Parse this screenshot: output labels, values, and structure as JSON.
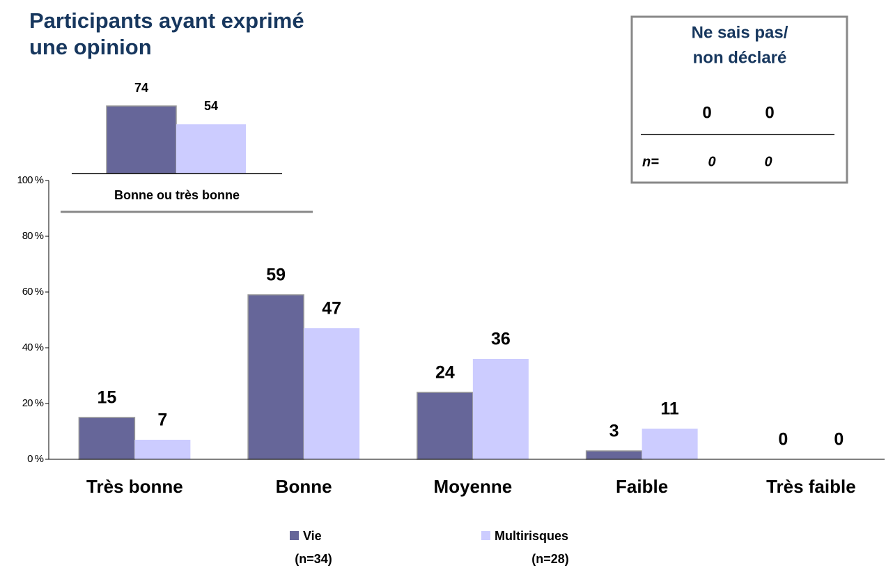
{
  "chart_data": [
    {
      "type": "bar",
      "categories": [
        "Très bonne",
        "Bonne",
        "Moyenne",
        "Faible",
        "Très faible"
      ],
      "series": [
        {
          "name": "Vie",
          "n_label": "(n=34)",
          "color": "#666699",
          "values": [
            15,
            59,
            24,
            3,
            0
          ]
        },
        {
          "name": "Multirisques",
          "n_label": "(n=28)",
          "color": "#ccccff",
          "values": [
            7,
            47,
            36,
            11,
            0
          ]
        }
      ],
      "ylim": [
        0,
        100
      ],
      "yticks": [
        {
          "value": 0,
          "label": "0 %"
        },
        {
          "value": 20,
          "label": "20 %"
        },
        {
          "value": 40,
          "label": "40 %"
        },
        {
          "value": 60,
          "label": "60 %"
        },
        {
          "value": 80,
          "label": "80 %"
        },
        {
          "value": 100,
          "label": "100 %"
        }
      ]
    },
    {
      "type": "bar",
      "categories": [
        "Bonne ou très bonne"
      ],
      "series": [
        {
          "name": "Vie",
          "color": "#666699",
          "values": [
            74
          ]
        },
        {
          "name": "Multirisques",
          "color": "#ccccff",
          "values": [
            54
          ]
        }
      ]
    }
  ],
  "title_lines": [
    "Participants ayant exprimé",
    "une opinion"
  ],
  "dont_know": {
    "title_lines": [
      "Ne sais pas/",
      "non déclaré"
    ],
    "values": [
      0,
      0
    ],
    "n_label": "n=",
    "n_values": [
      0,
      0
    ]
  }
}
